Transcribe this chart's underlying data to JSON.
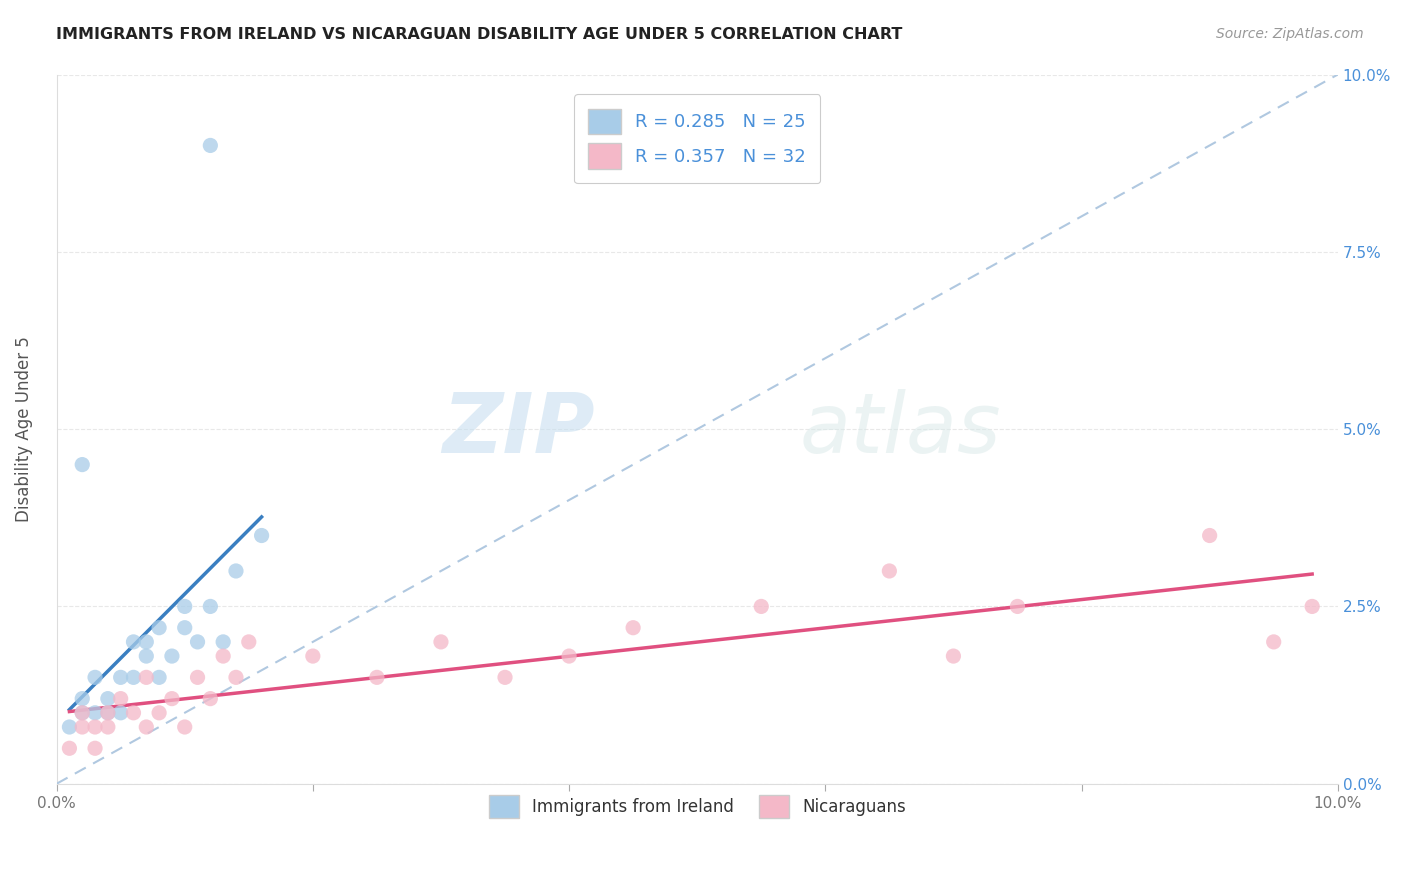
{
  "title": "IMMIGRANTS FROM IRELAND VS NICARAGUAN DISABILITY AGE UNDER 5 CORRELATION CHART",
  "source": "Source: ZipAtlas.com",
  "ylabel": "Disability Age Under 5",
  "xlim": [
    0.0,
    0.1
  ],
  "ylim": [
    0.0,
    0.1
  ],
  "legend_ireland_R": "0.285",
  "legend_ireland_N": "25",
  "legend_nicaragua_R": "0.357",
  "legend_nicaragua_N": "32",
  "ireland_color": "#a8cce8",
  "nicaragua_color": "#f4b8c8",
  "ireland_line_color": "#3a7fc1",
  "nicaragua_line_color": "#e05080",
  "diagonal_color": "#b0c8e0",
  "background_color": "#ffffff",
  "grid_color": "#e8e8e8",
  "ireland_scatter_x": [
    0.001,
    0.002,
    0.002,
    0.003,
    0.003,
    0.004,
    0.004,
    0.005,
    0.005,
    0.006,
    0.006,
    0.007,
    0.007,
    0.008,
    0.008,
    0.009,
    0.01,
    0.01,
    0.011,
    0.012,
    0.013,
    0.014,
    0.016,
    0.002,
    0.012
  ],
  "ireland_scatter_y": [
    0.008,
    0.01,
    0.012,
    0.01,
    0.015,
    0.01,
    0.012,
    0.015,
    0.01,
    0.02,
    0.015,
    0.018,
    0.02,
    0.022,
    0.015,
    0.018,
    0.022,
    0.025,
    0.02,
    0.025,
    0.02,
    0.03,
    0.035,
    0.045,
    0.09
  ],
  "nicaragua_scatter_x": [
    0.001,
    0.002,
    0.002,
    0.003,
    0.003,
    0.004,
    0.004,
    0.005,
    0.006,
    0.007,
    0.007,
    0.008,
    0.009,
    0.01,
    0.011,
    0.012,
    0.013,
    0.014,
    0.015,
    0.02,
    0.025,
    0.03,
    0.035,
    0.04,
    0.045,
    0.055,
    0.065,
    0.07,
    0.075,
    0.09,
    0.095,
    0.098
  ],
  "nicaragua_scatter_y": [
    0.005,
    0.008,
    0.01,
    0.005,
    0.008,
    0.01,
    0.008,
    0.012,
    0.01,
    0.008,
    0.015,
    0.01,
    0.012,
    0.008,
    0.015,
    0.012,
    0.018,
    0.015,
    0.02,
    0.018,
    0.015,
    0.02,
    0.015,
    0.018,
    0.022,
    0.025,
    0.03,
    0.018,
    0.025,
    0.035,
    0.02,
    0.025
  ],
  "y_ticks": [
    0.0,
    0.025,
    0.05,
    0.075,
    0.1
  ],
  "x_ticks": [
    0.0,
    0.02,
    0.04,
    0.06,
    0.08,
    0.1
  ],
  "y_tick_labels": [
    "0.0%",
    "2.5%",
    "5.0%",
    "7.5%",
    "10.0%"
  ],
  "x_tick_labels": [
    "0.0%",
    "",
    "",
    "",
    "",
    "10.0%"
  ]
}
